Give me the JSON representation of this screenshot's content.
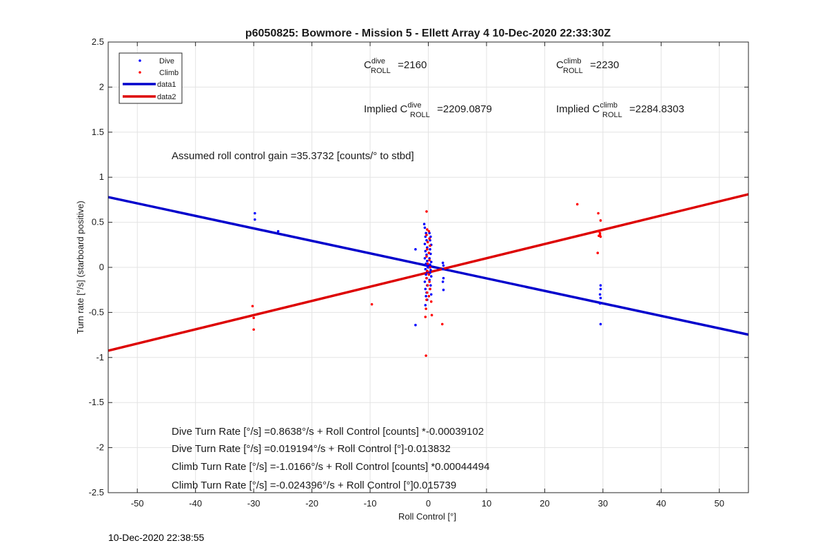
{
  "chart_data": {
    "type": "scatter",
    "title": "p6050825: Bowmore - Mission 5 - Ellett Array 4 10-Dec-2020 22:33:30Z",
    "xlabel": "Roll Control [°]",
    "ylabel": "Turn rate [°/s] (starboard positive)",
    "xlim": [
      -55,
      55
    ],
    "ylim": [
      -2.5,
      2.5
    ],
    "xticks": [
      -50,
      -40,
      -30,
      -20,
      -10,
      0,
      10,
      20,
      30,
      40,
      50
    ],
    "yticks": [
      -2.5,
      -2,
      -1.5,
      -1,
      -0.5,
      0,
      0.5,
      1,
      1.5,
      2,
      2.5
    ],
    "grid": true,
    "legend_position": "top-left",
    "colors": {
      "dive": "#0000ff",
      "climb": "#ff0000",
      "data1": "#0000cc",
      "data2": "#dd0000"
    },
    "series": [
      {
        "name": "Dive",
        "kind": "points",
        "points": [
          [
            -29.8,
            0.6
          ],
          [
            -29.8,
            0.53
          ],
          [
            -25.8,
            0.4
          ],
          [
            -2.2,
            0.2
          ],
          [
            -2.2,
            -0.64
          ],
          [
            -0.7,
            0.48
          ],
          [
            -0.6,
            0.44
          ],
          [
            -0.4,
            0.38
          ],
          [
            -0.5,
            0.34
          ],
          [
            -0.3,
            0.3
          ],
          [
            -0.6,
            0.26
          ],
          [
            -0.2,
            0.22
          ],
          [
            -0.5,
            0.18
          ],
          [
            -0.3,
            0.14
          ],
          [
            -0.6,
            0.1
          ],
          [
            -0.2,
            0.07
          ],
          [
            -0.4,
            0.04
          ],
          [
            -0.3,
            0.02
          ],
          [
            -0.1,
            0.0
          ],
          [
            -0.5,
            -0.02
          ],
          [
            -0.2,
            -0.05
          ],
          [
            -0.4,
            -0.08
          ],
          [
            -0.3,
            -0.12
          ],
          [
            -0.6,
            -0.16
          ],
          [
            -0.2,
            -0.2
          ],
          [
            -0.5,
            -0.24
          ],
          [
            -0.3,
            -0.28
          ],
          [
            -0.4,
            -0.32
          ],
          [
            -0.2,
            -0.36
          ],
          [
            -0.5,
            -0.42
          ],
          [
            0.2,
            0.38
          ],
          [
            0.4,
            0.34
          ],
          [
            0.3,
            0.3
          ],
          [
            0.5,
            0.25
          ],
          [
            0.3,
            0.2
          ],
          [
            0.4,
            0.15
          ],
          [
            0.2,
            0.1
          ],
          [
            0.5,
            0.06
          ],
          [
            0.3,
            0.03
          ],
          [
            0.1,
            0.0
          ],
          [
            0.4,
            -0.03
          ],
          [
            0.3,
            -0.06
          ],
          [
            0.5,
            -0.1
          ],
          [
            0.2,
            -0.14
          ],
          [
            0.4,
            -0.2
          ],
          [
            0.3,
            -0.24
          ],
          [
            0.5,
            -0.3
          ],
          [
            2.5,
            0.05
          ],
          [
            2.6,
            0.02
          ],
          [
            2.5,
            -0.02
          ],
          [
            2.6,
            -0.12
          ],
          [
            2.5,
            -0.16
          ],
          [
            2.6,
            -0.25
          ],
          [
            29.6,
            -0.2
          ],
          [
            29.6,
            -0.24
          ],
          [
            29.5,
            -0.3
          ],
          [
            29.6,
            -0.34
          ],
          [
            29.5,
            -0.4
          ],
          [
            29.6,
            -0.63
          ]
        ]
      },
      {
        "name": "Climb",
        "kind": "points",
        "points": [
          [
            -30.2,
            -0.43
          ],
          [
            -30.0,
            -0.56
          ],
          [
            -30.0,
            -0.69
          ],
          [
            -9.7,
            -0.41
          ],
          [
            25.6,
            0.7
          ],
          [
            29.2,
            0.6
          ],
          [
            29.6,
            0.52
          ],
          [
            29.2,
            0.4
          ],
          [
            29.5,
            0.38
          ],
          [
            29.3,
            0.35
          ],
          [
            29.6,
            0.34
          ],
          [
            29.1,
            0.16
          ],
          [
            29.5,
            0.36
          ],
          [
            -0.3,
            0.62
          ],
          [
            -0.2,
            0.42
          ],
          [
            0.1,
            0.4
          ],
          [
            -0.3,
            0.36
          ],
          [
            0.2,
            0.32
          ],
          [
            -0.1,
            0.28
          ],
          [
            0.3,
            0.24
          ],
          [
            -0.2,
            0.2
          ],
          [
            0.1,
            0.16
          ],
          [
            -0.3,
            0.12
          ],
          [
            0.2,
            0.08
          ],
          [
            -0.1,
            0.04
          ],
          [
            0.3,
            0.0
          ],
          [
            -0.2,
            -0.04
          ],
          [
            0.1,
            -0.08
          ],
          [
            -0.3,
            -0.12
          ],
          [
            0.2,
            -0.16
          ],
          [
            -0.1,
            -0.2
          ],
          [
            0.3,
            -0.24
          ],
          [
            -0.2,
            -0.28
          ],
          [
            0.1,
            -0.32
          ],
          [
            -0.3,
            -0.36
          ],
          [
            0.5,
            -0.38
          ],
          [
            -0.4,
            -0.46
          ],
          [
            0.6,
            -0.53
          ],
          [
            -0.5,
            -0.55
          ],
          [
            -0.4,
            -0.98
          ],
          [
            2.4,
            -0.63
          ]
        ]
      },
      {
        "name": "data1",
        "kind": "line",
        "points": [
          [
            -55,
            0.7793
          ],
          [
            55,
            -0.7464
          ]
        ]
      },
      {
        "name": "data2",
        "kind": "line",
        "points": [
          [
            -55,
            -0.9246
          ],
          [
            55,
            0.8112
          ]
        ]
      }
    ],
    "legend": [
      "Dive",
      "Climb",
      "data1",
      "data2"
    ],
    "annotations": {
      "c_roll_dive": {
        "prefix": "C",
        "sup": "dive",
        "sub": "ROLL",
        "value": " =2160"
      },
      "c_roll_climb": {
        "prefix": "C",
        "sup": "climb",
        "sub": "ROLL",
        "value": " =2230"
      },
      "implied_dive": {
        "prefix": "Implied C",
        "sup": "dive",
        "sub": "ROLL",
        "value": " =2209.0879"
      },
      "implied_climb": {
        "prefix": "Implied C",
        "sup": "climb",
        "sub": "ROLL",
        "value": " =2284.8303"
      },
      "gain": "Assumed roll control gain =35.3732 [counts/° to stbd]",
      "eq1": "Dive Turn Rate [°/s] =0.8638°/s + Roll Control [counts] *-0.00039102",
      "eq2": "Dive Turn Rate [°/s] =0.019194°/s + Roll Control [°]-0.013832",
      "eq3": "Climb Turn Rate [°/s] =-1.0166°/s + Roll Control [counts] *0.00044494",
      "eq4": "Climb Turn Rate [°/s] =-0.024396°/s + Roll Control [°]0.015739"
    }
  },
  "footer": {
    "timestamp": "10-Dec-2020 22:38:55"
  }
}
